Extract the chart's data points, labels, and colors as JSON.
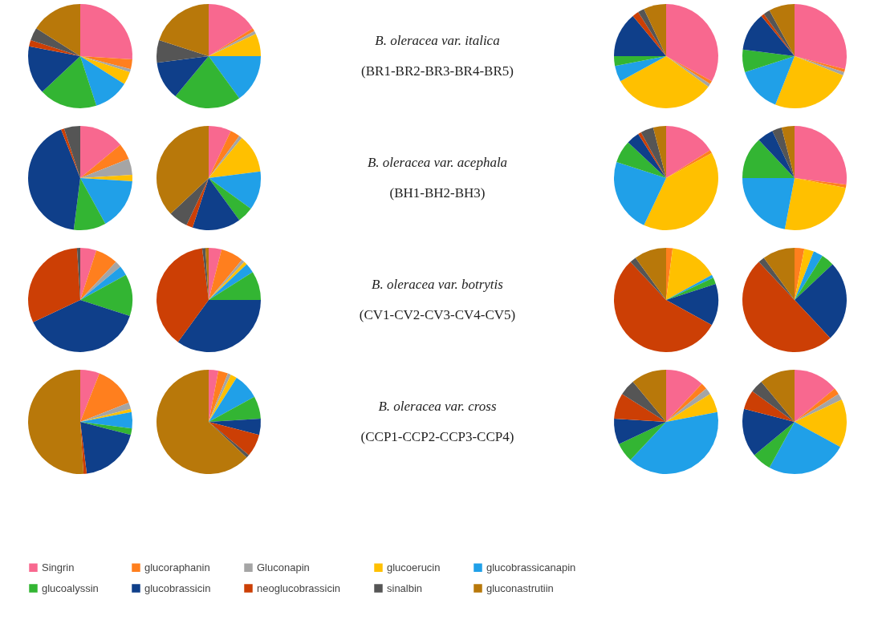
{
  "chart_data": [
    {
      "type": "pie",
      "legend": "bottom",
      "categories": [
        "Singrin",
        "glucoraphanin",
        "Gluconapin",
        "glucoerucin",
        "glucobrassicanapin",
        "glucoalyssin",
        "glucobrassicin",
        "neoglucobrassicin",
        "sinalbin",
        "gluconastrutiin"
      ],
      "colors": [
        "#f8688f",
        "#ff7f1e",
        "#a5a5a5",
        "#ffc000",
        "#20a0e8",
        "#33b533",
        "#0f3f8a",
        "#cc3f05",
        "#555555",
        "#b8780a"
      ],
      "values": [
        26,
        3,
        1,
        4,
        11,
        18,
        15,
        2,
        4,
        16
      ]
    },
    {
      "type": "pie",
      "categories": [
        null,
        null,
        null,
        null,
        null,
        null,
        null,
        null,
        null,
        null
      ],
      "colors": [
        "#f8688f",
        "#ff7f1e",
        "#a5a5a5",
        "#ffc000",
        "#20a0e8",
        "#33b533",
        "#0f3f8a",
        "#cc3f05",
        "#555555",
        "#b8780a"
      ],
      "values": [
        16,
        1,
        1,
        7,
        15,
        21,
        12,
        0,
        7,
        20
      ]
    },
    {
      "type": "other",
      "annotations": [
        "B. oleracea var. italica",
        "(BR1-BR2-BR3-BR4-BR5)"
      ]
    },
    {
      "type": "pie",
      "categories": [
        null,
        null,
        null,
        null,
        null,
        null,
        null,
        null,
        null,
        null
      ],
      "colors": [
        "#f8688f",
        "#ff7f1e",
        "#a5a5a5",
        "#ffc000",
        "#20a0e8",
        "#33b533",
        "#0f3f8a",
        "#cc3f05",
        "#555555",
        "#b8780a"
      ],
      "values": [
        33,
        1,
        1,
        32,
        5,
        3,
        14,
        2,
        2,
        7
      ]
    },
    {
      "type": "pie",
      "categories": [
        null,
        null,
        null,
        null,
        null,
        null,
        null,
        null,
        null,
        null
      ],
      "colors": [
        "#f8688f",
        "#ff7f1e",
        "#a5a5a5",
        "#ffc000",
        "#20a0e8",
        "#33b533",
        "#0f3f8a",
        "#cc3f05",
        "#555555",
        "#b8780a"
      ],
      "values": [
        29,
        1,
        1,
        25,
        14,
        7,
        12,
        1,
        2,
        8
      ]
    },
    {
      "type": "pie",
      "categories": [
        null,
        null,
        null,
        null,
        null,
        null,
        null,
        null,
        null,
        null
      ],
      "colors": [
        "#f8688f",
        "#ff7f1e",
        "#a5a5a5",
        "#ffc000",
        "#20a0e8",
        "#33b533",
        "#0f3f8a",
        "#cc3f05",
        "#555555",
        "#b8780a"
      ],
      "values": [
        14,
        5,
        5,
        2,
        16,
        10,
        42,
        1,
        5,
        0
      ]
    },
    {
      "type": "pie",
      "categories": [
        null,
        null,
        null,
        null,
        null,
        null,
        null,
        null,
        null,
        null
      ],
      "colors": [
        "#f8688f",
        "#ff7f1e",
        "#a5a5a5",
        "#ffc000",
        "#20a0e8",
        "#33b533",
        "#0f3f8a",
        "#cc3f05",
        "#555555",
        "#b8780a"
      ],
      "values": [
        7,
        3,
        1,
        12,
        12,
        5,
        15,
        2,
        6,
        37
      ]
    },
    {
      "type": "other",
      "annotations": [
        "B. oleracea var. acephala",
        "(BH1-BH2-BH3)"
      ]
    },
    {
      "type": "pie",
      "categories": [
        null,
        null,
        null,
        null,
        null,
        null,
        null,
        null,
        null,
        null
      ],
      "colors": [
        "#f8688f",
        "#ff7f1e",
        "#a5a5a5",
        "#ffc000",
        "#20a0e8",
        "#33b533",
        "#0f3f8a",
        "#cc3f05",
        "#555555",
        "#b8780a"
      ],
      "values": [
        16,
        1,
        0,
        40,
        23,
        7,
        4,
        1,
        4,
        4
      ]
    },
    {
      "type": "pie",
      "categories": [
        null,
        null,
        null,
        null,
        null,
        null,
        null,
        null,
        null,
        null
      ],
      "colors": [
        "#f8688f",
        "#ff7f1e",
        "#a5a5a5",
        "#ffc000",
        "#20a0e8",
        "#33b533",
        "#0f3f8a",
        "#cc3f05",
        "#555555",
        "#b8780a"
      ],
      "values": [
        27,
        1,
        0,
        25,
        22,
        13,
        5,
        0,
        3,
        4
      ]
    },
    {
      "type": "pie",
      "categories": [
        null,
        null,
        null,
        null,
        null,
        null,
        null,
        null,
        null,
        null
      ],
      "colors": [
        "#f8688f",
        "#ff7f1e",
        "#a5a5a5",
        "#ffc000",
        "#20a0e8",
        "#33b533",
        "#0f3f8a",
        "#cc3f05",
        "#555555",
        "#b8780a"
      ],
      "values": [
        5,
        7,
        2,
        0,
        3,
        13,
        38,
        31,
        1,
        0
      ]
    },
    {
      "type": "pie",
      "categories": [
        null,
        null,
        null,
        null,
        null,
        null,
        null,
        null,
        null,
        null
      ],
      "colors": [
        "#f8688f",
        "#ff7f1e",
        "#a5a5a5",
        "#ffc000",
        "#20a0e8",
        "#33b533",
        "#0f3f8a",
        "#cc3f05",
        "#555555",
        "#b8780a"
      ],
      "values": [
        4,
        7,
        1,
        1,
        3,
        9,
        35,
        38,
        1,
        1
      ]
    },
    {
      "type": "other",
      "annotations": [
        "B. oleracea var. botrytis",
        "(CV1-CV2-CV3-CV4-CV5)"
      ]
    },
    {
      "type": "pie",
      "categories": [
        null,
        null,
        null,
        null,
        null,
        null,
        null,
        null,
        null,
        null
      ],
      "colors": [
        "#f8688f",
        "#ff7f1e",
        "#a5a5a5",
        "#ffc000",
        "#20a0e8",
        "#33b533",
        "#0f3f8a",
        "#cc3f05",
        "#555555",
        "#b8780a"
      ],
      "values": [
        0,
        2,
        0,
        15,
        1,
        2,
        13,
        55,
        2,
        10
      ]
    },
    {
      "type": "pie",
      "categories": [
        null,
        null,
        null,
        null,
        null,
        null,
        null,
        null,
        null,
        null
      ],
      "colors": [
        "#f8688f",
        "#ff7f1e",
        "#a5a5a5",
        "#ffc000",
        "#20a0e8",
        "#33b533",
        "#0f3f8a",
        "#cc3f05",
        "#555555",
        "#b8780a"
      ],
      "values": [
        0,
        3,
        0,
        3,
        3,
        4,
        25,
        50,
        2,
        10
      ]
    },
    {
      "type": "pie",
      "categories": [
        null,
        null,
        null,
        null,
        null,
        null,
        null,
        null,
        null,
        null
      ],
      "colors": [
        "#f8688f",
        "#ff7f1e",
        "#a5a5a5",
        "#ffc000",
        "#20a0e8",
        "#33b533",
        "#0f3f8a",
        "#cc3f05",
        "#555555",
        "#b8780a"
      ],
      "values": [
        6,
        13,
        2,
        1,
        5,
        2,
        19,
        1,
        0,
        51
      ]
    },
    {
      "type": "pie",
      "categories": [
        null,
        null,
        null,
        null,
        null,
        null,
        null,
        null,
        null,
        null
      ],
      "colors": [
        "#f8688f",
        "#ff7f1e",
        "#a5a5a5",
        "#ffc000",
        "#20a0e8",
        "#33b533",
        "#0f3f8a",
        "#cc3f05",
        "#555555",
        "#b8780a"
      ],
      "values": [
        3,
        3,
        1,
        2,
        8,
        7,
        5,
        7,
        1,
        63
      ]
    },
    {
      "type": "other",
      "annotations": [
        "B. oleracea var. cross",
        "(CCP1-CCP2-CCP3-CCP4)"
      ]
    },
    {
      "type": "pie",
      "categories": [
        null,
        null,
        null,
        null,
        null,
        null,
        null,
        null,
        null,
        null
      ],
      "colors": [
        "#f8688f",
        "#ff7f1e",
        "#a5a5a5",
        "#ffc000",
        "#20a0e8",
        "#33b533",
        "#0f3f8a",
        "#cc3f05",
        "#555555",
        "#b8780a"
      ],
      "values": [
        12,
        2,
        2,
        6,
        40,
        6,
        8,
        8,
        5,
        11
      ]
    },
    {
      "type": "pie",
      "categories": [
        null,
        null,
        null,
        null,
        null,
        null,
        null,
        null,
        null,
        null
      ],
      "colors": [
        "#f8688f",
        "#ff7f1e",
        "#a5a5a5",
        "#ffc000",
        "#20a0e8",
        "#33b533",
        "#0f3f8a",
        "#cc3f05",
        "#555555",
        "#b8780a"
      ],
      "values": [
        14,
        2,
        2,
        15,
        25,
        6,
        15,
        6,
        4,
        11
      ]
    }
  ]
}
